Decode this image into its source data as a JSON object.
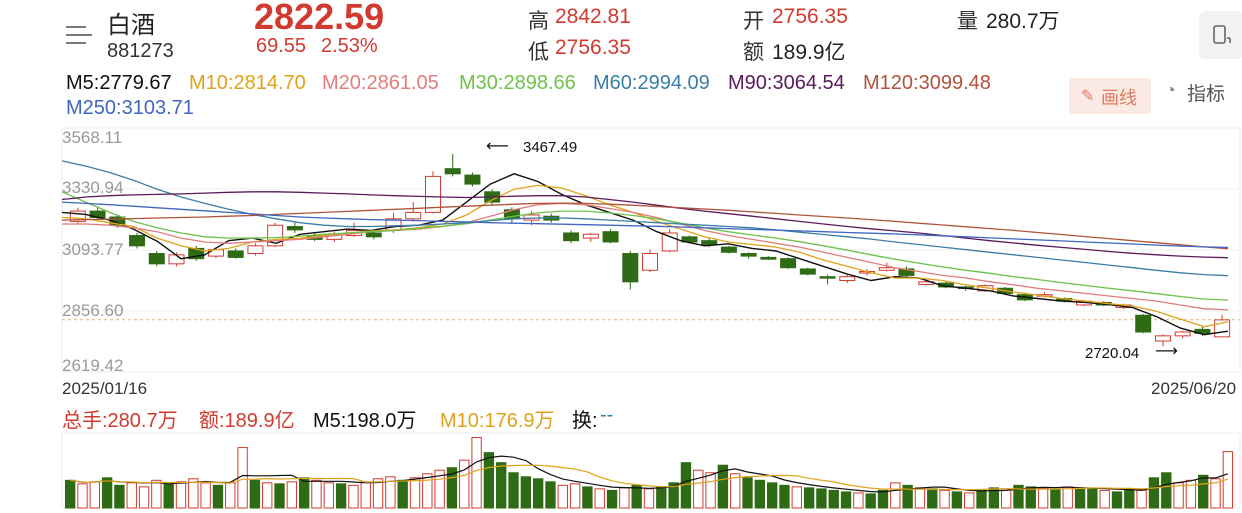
{
  "header": {
    "name": "白酒",
    "code": "881273",
    "price": "2822.59",
    "change": "69.55",
    "change_pct": "2.53%",
    "high_label": "高",
    "high": "2842.81",
    "low_label": "低",
    "low": "2756.35",
    "open_label": "开",
    "open": "2756.35",
    "amount_label": "额",
    "amount": "189.9亿",
    "volume_label": "量",
    "volume": "280.7万"
  },
  "ma": {
    "m5": "M5:2779.67",
    "m10": "M10:2814.70",
    "m20": "M20:2861.05",
    "m30": "M30:2898.66",
    "m60": "M60:2994.09",
    "m90": "M90:3064.54",
    "m120": "M120:3099.48",
    "m250": "M250:3103.71"
  },
  "toolbar": {
    "draw_label": "画线",
    "indicator_label": "指标"
  },
  "colors": {
    "up": "#d23a2f",
    "down": "#2e6b14",
    "m5": "#111111",
    "m10": "#e0a21a",
    "m20": "#e37c7c",
    "m30": "#6cc24a",
    "m60": "#3a7ea8",
    "m90": "#5b1a5b",
    "m120": "#b0533c",
    "m250": "#3f66c0"
  },
  "chart": {
    "y_ticks": [
      "3568.11",
      "3330.94",
      "3093.77",
      "2856.60",
      "2619.42"
    ],
    "y_range": [
      2619.42,
      3568.11
    ],
    "start_date": "2025/01/16",
    "end_date": "2025/06/20",
    "high_marker": "3467.49",
    "low_marker": "2720.04"
  },
  "volume": {
    "total": "总手:280.7万",
    "amount": "额:189.9亿",
    "m5": "M5:198.0万",
    "m10": "M10:176.9万",
    "turnover_label": "换:",
    "turnover_value": "--"
  },
  "chart_data": {
    "type": "line",
    "series": [
      {
        "name": "M5",
        "values": [
          3240,
          3232,
          3210,
          3175,
          3128,
          3060,
          3075,
          3130,
          3140,
          3120,
          3155,
          3165,
          3175,
          3170,
          3185,
          3190,
          3210,
          3280,
          3350,
          3390,
          3360,
          3310,
          3270,
          3240,
          3210,
          3165,
          3130,
          3110,
          3118,
          3100,
          3090,
          3060,
          3030,
          3000,
          2975,
          2990,
          2985,
          2955,
          2945,
          2935,
          2915,
          2905,
          2895,
          2890,
          2882,
          2870,
          2835,
          2790,
          2765,
          2778
        ]
      },
      {
        "name": "M10",
        "values": [
          3220,
          3215,
          3200,
          3185,
          3140,
          3110,
          3090,
          3100,
          3125,
          3135,
          3140,
          3150,
          3160,
          3168,
          3172,
          3180,
          3195,
          3230,
          3285,
          3330,
          3345,
          3335,
          3305,
          3270,
          3240,
          3205,
          3175,
          3145,
          3125,
          3115,
          3105,
          3085,
          3055,
          3030,
          3005,
          2985,
          2985,
          2975,
          2958,
          2945,
          2930,
          2918,
          2905,
          2895,
          2885,
          2876,
          2855,
          2825,
          2795,
          2815
        ]
      },
      {
        "name": "M20",
        "values": [
          3195,
          3195,
          3190,
          3180,
          3165,
          3140,
          3125,
          3120,
          3125,
          3130,
          3135,
          3145,
          3155,
          3165,
          3170,
          3175,
          3185,
          3200,
          3225,
          3250,
          3270,
          3275,
          3270,
          3255,
          3240,
          3220,
          3195,
          3170,
          3150,
          3135,
          3120,
          3105,
          3085,
          3065,
          3045,
          3025,
          3010,
          2995,
          2985,
          2970,
          2958,
          2945,
          2935,
          2925,
          2915,
          2905,
          2895,
          2880,
          2865,
          2861
        ]
      },
      {
        "name": "M30",
        "values": [
          3320,
          3280,
          3240,
          3205,
          3180,
          3160,
          3145,
          3140,
          3140,
          3142,
          3148,
          3155,
          3160,
          3165,
          3170,
          3178,
          3186,
          3196,
          3210,
          3225,
          3238,
          3245,
          3245,
          3238,
          3228,
          3215,
          3198,
          3180,
          3165,
          3152,
          3140,
          3126,
          3110,
          3093,
          3075,
          3058,
          3043,
          3028,
          3015,
          3003,
          2990,
          2979,
          2967,
          2956,
          2945,
          2935,
          2924,
          2913,
          2903,
          2899
        ]
      },
      {
        "name": "M60",
        "values": [
          3440,
          3420,
          3395,
          3365,
          3330,
          3300,
          3275,
          3252,
          3232,
          3215,
          3200,
          3190,
          3185,
          3185,
          3188,
          3190,
          3195,
          3200,
          3208,
          3215,
          3218,
          3218,
          3215,
          3210,
          3205,
          3200,
          3195,
          3190,
          3185,
          3180,
          3172,
          3163,
          3154,
          3145,
          3136,
          3125,
          3115,
          3105,
          3095,
          3085,
          3075,
          3065,
          3055,
          3045,
          3035,
          3025,
          3015,
          3005,
          2998,
          2994
        ]
      },
      {
        "name": "M90",
        "values": [
          3290,
          3300,
          3305,
          3308,
          3310,
          3312,
          3315,
          3318,
          3320,
          3320,
          3318,
          3315,
          3312,
          3308,
          3305,
          3302,
          3300,
          3298,
          3300,
          3303,
          3305,
          3305,
          3300,
          3290,
          3280,
          3268,
          3256,
          3245,
          3235,
          3225,
          3215,
          3205,
          3195,
          3185,
          3176,
          3168,
          3160,
          3150,
          3140,
          3130,
          3121,
          3112,
          3104,
          3096,
          3088,
          3081,
          3075,
          3070,
          3066,
          3064
        ]
      },
      {
        "name": "M120",
        "values": [
          3210,
          3212,
          3214,
          3216,
          3218,
          3220,
          3222,
          3225,
          3228,
          3232,
          3236,
          3240,
          3244,
          3248,
          3252,
          3256,
          3260,
          3264,
          3268,
          3272,
          3275,
          3276,
          3275,
          3272,
          3268,
          3263,
          3258,
          3253,
          3248,
          3242,
          3236,
          3230,
          3224,
          3218,
          3212,
          3205,
          3198,
          3191,
          3184,
          3177,
          3170,
          3162,
          3154,
          3146,
          3138,
          3130,
          3122,
          3114,
          3106,
          3099
        ]
      },
      {
        "name": "M250",
        "values": [
          3280,
          3275,
          3270,
          3264,
          3258,
          3252,
          3246,
          3240,
          3234,
          3228,
          3222,
          3218,
          3215,
          3212,
          3210,
          3208,
          3205,
          3203,
          3200,
          3198,
          3196,
          3194,
          3192,
          3190,
          3188,
          3186,
          3183,
          3180,
          3177,
          3174,
          3171,
          3168,
          3165,
          3162,
          3159,
          3156,
          3153,
          3149,
          3145,
          3141,
          3137,
          3133,
          3129,
          3125,
          3121,
          3117,
          3113,
          3109,
          3106,
          3104
        ]
      }
    ],
    "candles": [
      {
        "o": 3205,
        "c": 3245,
        "h": 3258,
        "l": 3195
      },
      {
        "o": 3245,
        "c": 3220,
        "h": 3262,
        "l": 3212
      },
      {
        "o": 3222,
        "c": 3190,
        "h": 3230,
        "l": 3180
      },
      {
        "o": 3150,
        "c": 3110,
        "h": 3160,
        "l": 3100
      },
      {
        "o": 3080,
        "c": 3040,
        "h": 3090,
        "l": 3030
      },
      {
        "o": 3040,
        "c": 3075,
        "h": 3085,
        "l": 3030
      },
      {
        "o": 3100,
        "c": 3060,
        "h": 3110,
        "l": 3052
      },
      {
        "o": 3070,
        "c": 3095,
        "h": 3105,
        "l": 3062
      },
      {
        "o": 3090,
        "c": 3065,
        "h": 3100,
        "l": 3060
      },
      {
        "o": 3080,
        "c": 3110,
        "h": 3120,
        "l": 3072
      },
      {
        "o": 3110,
        "c": 3190,
        "h": 3200,
        "l": 3105
      },
      {
        "o": 3185,
        "c": 3172,
        "h": 3200,
        "l": 3160
      },
      {
        "o": 3150,
        "c": 3135,
        "h": 3158,
        "l": 3128
      },
      {
        "o": 3135,
        "c": 3155,
        "h": 3165,
        "l": 3125
      },
      {
        "o": 3150,
        "c": 3170,
        "h": 3200,
        "l": 3145
      },
      {
        "o": 3160,
        "c": 3145,
        "h": 3170,
        "l": 3135
      },
      {
        "o": 3170,
        "c": 3215,
        "h": 3238,
        "l": 3160
      },
      {
        "o": 3215,
        "c": 3240,
        "h": 3280,
        "l": 3205
      },
      {
        "o": 3240,
        "c": 3380,
        "h": 3400,
        "l": 3235
      },
      {
        "o": 3410,
        "c": 3390,
        "h": 3467,
        "l": 3380
      },
      {
        "o": 3385,
        "c": 3350,
        "h": 3395,
        "l": 3340
      },
      {
        "o": 3320,
        "c": 3280,
        "h": 3330,
        "l": 3270
      },
      {
        "o": 3250,
        "c": 3215,
        "h": 3260,
        "l": 3200
      },
      {
        "o": 3210,
        "c": 3230,
        "h": 3245,
        "l": 3190
      },
      {
        "o": 3225,
        "c": 3210,
        "h": 3235,
        "l": 3200
      },
      {
        "o": 3160,
        "c": 3130,
        "h": 3170,
        "l": 3120
      },
      {
        "o": 3140,
        "c": 3155,
        "h": 3160,
        "l": 3125
      },
      {
        "o": 3165,
        "c": 3125,
        "h": 3175,
        "l": 3120
      },
      {
        "o": 3080,
        "c": 2970,
        "h": 3090,
        "l": 2940
      },
      {
        "o": 3015,
        "c": 3080,
        "h": 3095,
        "l": 3008
      },
      {
        "o": 3090,
        "c": 3160,
        "h": 3175,
        "l": 3085
      },
      {
        "o": 3145,
        "c": 3125,
        "h": 3150,
        "l": 3120
      },
      {
        "o": 3130,
        "c": 3115,
        "h": 3140,
        "l": 3105
      },
      {
        "o": 3105,
        "c": 3085,
        "h": 3110,
        "l": 3080
      },
      {
        "o": 3080,
        "c": 3070,
        "h": 3085,
        "l": 3060
      },
      {
        "o": 3065,
        "c": 3058,
        "h": 3070,
        "l": 3055
      },
      {
        "o": 3060,
        "c": 3025,
        "h": 3065,
        "l": 3020
      },
      {
        "o": 3020,
        "c": 3000,
        "h": 3025,
        "l": 2995
      },
      {
        "o": 2990,
        "c": 2985,
        "h": 2998,
        "l": 2960
      },
      {
        "o": 2975,
        "c": 2990,
        "h": 2998,
        "l": 2965
      },
      {
        "o": 3005,
        "c": 3010,
        "h": 3020,
        "l": 2995
      },
      {
        "o": 3015,
        "c": 3025,
        "h": 3045,
        "l": 3010
      },
      {
        "o": 3020,
        "c": 2995,
        "h": 3030,
        "l": 2990
      },
      {
        "o": 2960,
        "c": 2970,
        "h": 2980,
        "l": 2955
      },
      {
        "o": 2965,
        "c": 2950,
        "h": 2970,
        "l": 2945
      },
      {
        "o": 2950,
        "c": 2945,
        "h": 2955,
        "l": 2935
      },
      {
        "o": 2935,
        "c": 2955,
        "h": 2960,
        "l": 2930
      },
      {
        "o": 2945,
        "c": 2925,
        "h": 2950,
        "l": 2920
      },
      {
        "o": 2920,
        "c": 2900,
        "h": 2928,
        "l": 2895
      },
      {
        "o": 2915,
        "c": 2920,
        "h": 2930,
        "l": 2910
      },
      {
        "o": 2905,
        "c": 2895,
        "h": 2910,
        "l": 2890
      },
      {
        "o": 2880,
        "c": 2895,
        "h": 2900,
        "l": 2875
      },
      {
        "o": 2890,
        "c": 2880,
        "h": 2895,
        "l": 2875
      },
      {
        "o": 2870,
        "c": 2880,
        "h": 2885,
        "l": 2865
      },
      {
        "o": 2840,
        "c": 2775,
        "h": 2845,
        "l": 2770
      },
      {
        "o": 2740,
        "c": 2760,
        "h": 2765,
        "l": 2720
      },
      {
        "o": 2760,
        "c": 2775,
        "h": 2780,
        "l": 2750
      },
      {
        "o": 2785,
        "c": 2770,
        "h": 2800,
        "l": 2760
      },
      {
        "o": 2756,
        "c": 2822,
        "h": 2842,
        "l": 2756
      }
    ],
    "volume_bars": [
      {
        "v": 55,
        "up": false
      },
      {
        "v": 48,
        "up": true
      },
      {
        "v": 52,
        "up": true
      },
      {
        "v": 60,
        "up": false
      },
      {
        "v": 45,
        "up": false
      },
      {
        "v": 50,
        "up": true
      },
      {
        "v": 42,
        "up": true
      },
      {
        "v": 55,
        "up": true
      },
      {
        "v": 48,
        "up": false
      },
      {
        "v": 52,
        "up": true
      },
      {
        "v": 58,
        "up": true
      },
      {
        "v": 50,
        "up": true
      },
      {
        "v": 45,
        "up": false
      },
      {
        "v": 50,
        "up": true
      },
      {
        "v": 120,
        "up": true
      },
      {
        "v": 55,
        "up": false
      },
      {
        "v": 50,
        "up": true
      },
      {
        "v": 48,
        "up": false
      },
      {
        "v": 52,
        "up": true
      },
      {
        "v": 60,
        "up": false
      },
      {
        "v": 55,
        "up": true
      },
      {
        "v": 50,
        "up": true
      },
      {
        "v": 48,
        "up": false
      },
      {
        "v": 45,
        "up": true
      },
      {
        "v": 52,
        "up": true
      },
      {
        "v": 58,
        "up": true
      },
      {
        "v": 62,
        "up": true
      },
      {
        "v": 55,
        "up": false
      },
      {
        "v": 60,
        "up": true
      },
      {
        "v": 68,
        "up": true
      },
      {
        "v": 75,
        "up": true
      },
      {
        "v": 80,
        "up": false
      },
      {
        "v": 95,
        "up": true
      },
      {
        "v": 140,
        "up": true
      },
      {
        "v": 110,
        "up": false
      },
      {
        "v": 90,
        "up": false
      },
      {
        "v": 70,
        "up": false
      },
      {
        "v": 62,
        "up": false
      },
      {
        "v": 58,
        "up": false
      },
      {
        "v": 52,
        "up": false
      },
      {
        "v": 45,
        "up": true
      },
      {
        "v": 48,
        "up": true
      },
      {
        "v": 42,
        "up": false
      },
      {
        "v": 38,
        "up": true
      },
      {
        "v": 35,
        "up": false
      },
      {
        "v": 40,
        "up": true
      },
      {
        "v": 45,
        "up": false
      },
      {
        "v": 38,
        "up": true
      },
      {
        "v": 42,
        "up": false
      },
      {
        "v": 50,
        "up": false
      },
      {
        "v": 90,
        "up": false
      },
      {
        "v": 75,
        "up": true
      },
      {
        "v": 70,
        "up": true
      },
      {
        "v": 85,
        "up": false
      },
      {
        "v": 68,
        "up": true
      },
      {
        "v": 60,
        "up": false
      },
      {
        "v": 55,
        "up": false
      },
      {
        "v": 50,
        "up": false
      },
      {
        "v": 45,
        "up": false
      },
      {
        "v": 42,
        "up": true
      },
      {
        "v": 40,
        "up": false
      },
      {
        "v": 38,
        "up": false
      },
      {
        "v": 35,
        "up": false
      },
      {
        "v": 32,
        "up": false
      },
      {
        "v": 30,
        "up": true
      },
      {
        "v": 28,
        "up": false
      },
      {
        "v": 35,
        "up": false
      },
      {
        "v": 50,
        "up": true
      },
      {
        "v": 45,
        "up": false
      },
      {
        "v": 40,
        "up": true
      },
      {
        "v": 38,
        "up": false
      },
      {
        "v": 35,
        "up": true
      },
      {
        "v": 32,
        "up": false
      },
      {
        "v": 30,
        "up": true
      },
      {
        "v": 35,
        "up": false
      },
      {
        "v": 40,
        "up": false
      },
      {
        "v": 38,
        "up": true
      },
      {
        "v": 45,
        "up": false
      },
      {
        "v": 42,
        "up": false
      },
      {
        "v": 40,
        "up": true
      },
      {
        "v": 38,
        "up": false
      },
      {
        "v": 42,
        "up": true
      },
      {
        "v": 40,
        "up": false
      },
      {
        "v": 38,
        "up": false
      },
      {
        "v": 35,
        "up": true
      },
      {
        "v": 32,
        "up": false
      },
      {
        "v": 38,
        "up": false
      },
      {
        "v": 35,
        "up": true
      },
      {
        "v": 60,
        "up": false
      },
      {
        "v": 70,
        "up": false
      },
      {
        "v": 50,
        "up": true
      },
      {
        "v": 55,
        "up": true
      },
      {
        "v": 65,
        "up": false
      },
      {
        "v": 58,
        "up": true
      },
      {
        "v": 112,
        "up": true
      }
    ]
  }
}
